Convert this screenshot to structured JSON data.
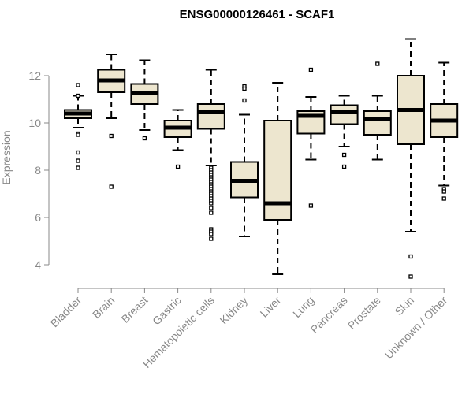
{
  "chart_data": {
    "type": "boxplot",
    "title": "ENSG00000126461 - SCAF1",
    "ylabel": "Expression",
    "xlabel": "",
    "ylim": [
      3.2,
      13.8
    ],
    "yticks": [
      4,
      6,
      8,
      10,
      12
    ],
    "grid": false,
    "legend": "none",
    "colors": {
      "box_fill": "#ede6cf",
      "stroke": "#000000",
      "axis_text": "#888888"
    },
    "categories": [
      "Bladder",
      "Brain",
      "Breast",
      "Gastric",
      "Hematopoietic cells",
      "Kidney",
      "Liver",
      "Lung",
      "Pancreas",
      "Prostate",
      "Skin",
      "Unknown / Other"
    ],
    "boxes": [
      {
        "whisker_low": 9.8,
        "q1": 10.2,
        "median": 10.4,
        "q3": 10.55,
        "whisker_high": 11.15,
        "outliers": [
          11.6,
          11.15,
          9.55,
          9.5,
          8.75,
          8.4,
          8.1
        ]
      },
      {
        "whisker_low": 10.2,
        "q1": 11.3,
        "median": 11.8,
        "q3": 12.25,
        "whisker_high": 12.9,
        "outliers": [
          9.45,
          7.3
        ]
      },
      {
        "whisker_low": 9.7,
        "q1": 10.8,
        "median": 11.25,
        "q3": 11.65,
        "whisker_high": 12.65,
        "outliers": [
          9.35
        ]
      },
      {
        "whisker_low": 8.85,
        "q1": 9.4,
        "median": 9.8,
        "q3": 10.1,
        "whisker_high": 10.55,
        "outliers": [
          8.15
        ]
      },
      {
        "whisker_low": 8.2,
        "q1": 9.75,
        "median": 10.45,
        "q3": 10.8,
        "whisker_high": 12.25,
        "outliers": [
          8.1,
          8.0,
          7.9,
          7.8,
          7.7,
          7.6,
          7.5,
          7.4,
          7.3,
          7.2,
          7.1,
          7.0,
          6.9,
          6.8,
          6.7,
          6.6,
          6.4,
          6.2,
          5.5,
          5.4,
          5.3,
          5.1
        ]
      },
      {
        "whisker_low": 5.2,
        "q1": 6.85,
        "median": 7.55,
        "q3": 8.35,
        "whisker_high": 10.35,
        "outliers": [
          11.55,
          11.45,
          10.95
        ]
      },
      {
        "whisker_low": 3.6,
        "q1": 5.9,
        "median": 6.6,
        "q3": 10.1,
        "whisker_high": 11.7,
        "outliers": []
      },
      {
        "whisker_low": 8.45,
        "q1": 9.55,
        "median": 10.3,
        "q3": 10.5,
        "whisker_high": 11.1,
        "outliers": [
          12.25,
          6.5
        ]
      },
      {
        "whisker_low": 9.0,
        "q1": 9.95,
        "median": 10.45,
        "q3": 10.75,
        "whisker_high": 11.15,
        "outliers": [
          8.65,
          8.15
        ]
      },
      {
        "whisker_low": 8.45,
        "q1": 9.5,
        "median": 10.15,
        "q3": 10.5,
        "whisker_high": 11.15,
        "outliers": [
          12.5
        ]
      },
      {
        "whisker_low": 5.4,
        "q1": 9.1,
        "median": 10.55,
        "q3": 12.0,
        "whisker_high": 13.55,
        "outliers": [
          4.35,
          3.5
        ]
      },
      {
        "whisker_low": 7.35,
        "q1": 9.4,
        "median": 10.1,
        "q3": 10.8,
        "whisker_high": 12.55,
        "outliers": [
          7.2,
          7.1,
          6.8
        ]
      }
    ]
  }
}
